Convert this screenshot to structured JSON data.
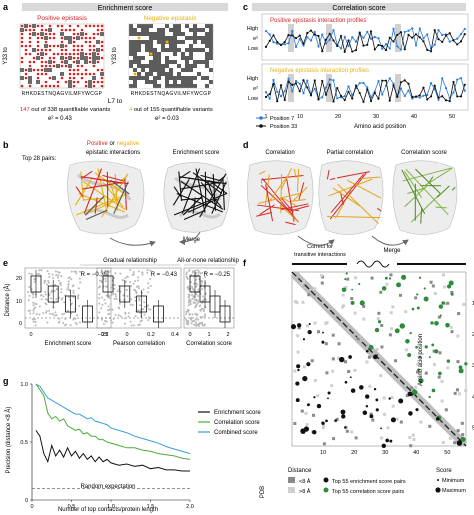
{
  "panels": {
    "a": {
      "letter": "a",
      "header": "Enrichment score",
      "pos_title": "Positive epistasis",
      "neg_title": "Negative epistasis",
      "ylabel": "Y33 to",
      "xticks": "RHKDESTNQAGVILMFYWCGP",
      "xticks_neg": "RHKDESTNQAGVILMFYWCGP",
      "xlabel": "L7 to",
      "pos_count": "147",
      "pos_count_rest": " out of 338 quantifiable variants",
      "neg_count": "4",
      "neg_count_rest": " out of 155 quantifiable variants",
      "pos_stat": "e² = 0.43",
      "neg_stat": "e² = 0.03",
      "colors": {
        "positive": "#d62728",
        "negative": "#e8b20f",
        "grey": "#6b6b6b"
      }
    },
    "b": {
      "letter": "b",
      "top_pairs": "Top 28 pairs:",
      "legend_pos": "Positive",
      "legend_or": " or ",
      "legend_neg": "negative",
      "legend_tail": "epistatic interactions",
      "enrichment": "Enrichment score",
      "merge": "Merge"
    },
    "c": {
      "letter": "c",
      "header": "Correlation score",
      "pos_title": "Positive epistasis interaction profiles",
      "neg_title": "Negative epistasis interaction profiles",
      "yticks": [
        "High",
        "e²",
        "Low"
      ],
      "xticks": [
        "1",
        "10",
        "20",
        "30",
        "40",
        "50"
      ],
      "xlabel": "Amino acid position",
      "legend": [
        "Position 7",
        "Position 33"
      ],
      "series_colors": [
        "#2c7bd6",
        "#111111"
      ]
    },
    "d": {
      "letter": "d",
      "labels": [
        "Correlation",
        "Partial correlation",
        "Correlation score"
      ],
      "correct_text": "Correct for transitive interactions",
      "merge": "Merge"
    },
    "e": {
      "letter": "e",
      "gradual": "Gradual relationship",
      "allnone": "All-or-none relationship",
      "ylabel": "Distance (Å)",
      "yticks": [
        "20",
        "10",
        "0"
      ],
      "subplots": [
        {
          "stat": "R = −0.39",
          "xlabel": "Enrichment score",
          "xticks": [
            "0",
            "25"
          ]
        },
        {
          "stat": "R = −0.43",
          "xlabel": "Pearson correlation",
          "xticks": [
            "−0.2",
            "0",
            "0.2",
            "0.4"
          ]
        },
        {
          "stat": "R = −0.25",
          "xlabel": "Correlation score",
          "xticks": [
            "0",
            "1",
            "2"
          ]
        }
      ]
    },
    "f": {
      "letter": "f",
      "ylabel": "Amino acid position",
      "ticks": [
        "10",
        "20",
        "30",
        "40",
        "50"
      ],
      "legend_title_pdb": "PDB",
      "legend_title_distance": "Distance",
      "dist_items": [
        "<8 Å",
        ">8 Å"
      ],
      "top_items": [
        "Top 55 enrichment score pairs",
        "Top 55 correlation score pairs"
      ],
      "score_title": "Score",
      "score_items": [
        "Minimum",
        "Maximum"
      ]
    },
    "g": {
      "letter": "g",
      "ylabel": "Precision (distance <8 Å)",
      "xlabel": "Number of top contacts/protein length",
      "random": "Random expectation"
    }
  },
  "chart_data": {
    "type": "line",
    "xlabel": "Number of top contacts/protein length",
    "ylabel": "Precision (distance <8 Å)",
    "xlim": [
      0,
      2.0
    ],
    "ylim": [
      0,
      1.0
    ],
    "xticks": [
      "0",
      "0.5",
      "1.0",
      "1.5",
      "2.0"
    ],
    "yticks": [
      "0",
      "0.5",
      "1.0"
    ],
    "random_expectation": 0.1,
    "x": [
      0.05,
      0.1,
      0.15,
      0.2,
      0.25,
      0.3,
      0.35,
      0.4,
      0.45,
      0.5,
      0.55,
      0.6,
      0.65,
      0.7,
      0.75,
      0.8,
      0.85,
      0.9,
      0.95,
      1.0,
      1.1,
      1.2,
      1.3,
      1.4,
      1.5,
      1.6,
      1.7,
      1.8,
      1.9,
      2.0
    ],
    "series": [
      {
        "name": "Enrichment score",
        "color": "#111111",
        "values": [
          0.6,
          0.55,
          0.4,
          0.33,
          0.47,
          0.38,
          0.43,
          0.37,
          0.45,
          0.38,
          0.42,
          0.36,
          0.4,
          0.35,
          0.38,
          0.33,
          0.37,
          0.33,
          0.35,
          0.32,
          0.3,
          0.31,
          0.29,
          0.3,
          0.27,
          0.28,
          0.26,
          0.26,
          0.25,
          0.25
        ]
      },
      {
        "name": "Correlation score",
        "color": "#4caf3a",
        "values": [
          1.0,
          0.95,
          0.9,
          0.75,
          0.7,
          0.72,
          0.68,
          0.7,
          0.64,
          0.62,
          0.6,
          0.61,
          0.57,
          0.58,
          0.55,
          0.55,
          0.52,
          0.52,
          0.5,
          0.49,
          0.47,
          0.45,
          0.45,
          0.43,
          0.42,
          0.4,
          0.39,
          0.38,
          0.36,
          0.35
        ]
      },
      {
        "name": "Combined score",
        "color": "#3aa0d8",
        "values": [
          1.0,
          0.98,
          0.93,
          0.88,
          0.86,
          0.84,
          0.82,
          0.8,
          0.78,
          0.76,
          0.74,
          0.74,
          0.72,
          0.7,
          0.71,
          0.68,
          0.67,
          0.66,
          0.65,
          0.62,
          0.6,
          0.58,
          0.55,
          0.53,
          0.51,
          0.49,
          0.46,
          0.44,
          0.42,
          0.4
        ]
      }
    ]
  }
}
